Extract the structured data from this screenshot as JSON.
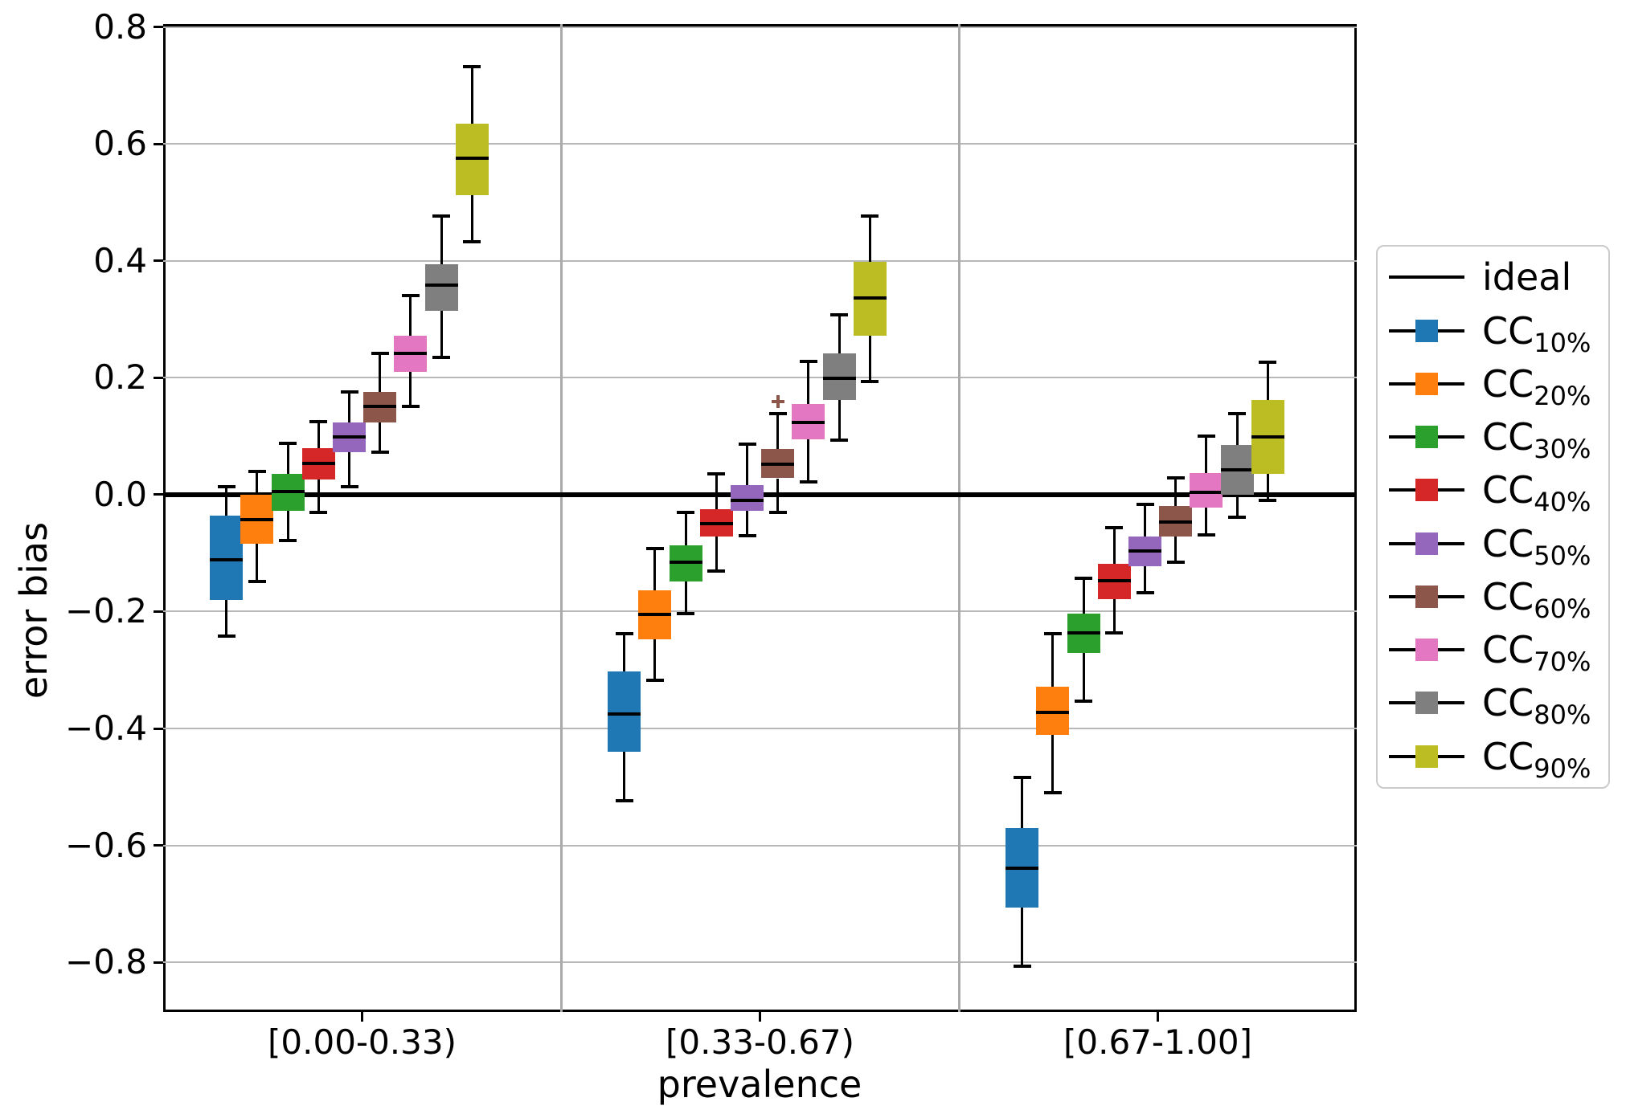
{
  "figure": {
    "background": "#ffffff",
    "spine_color": "#000000",
    "grid_color": "#b8b8b8"
  },
  "legend": {
    "position": "right-outside",
    "items": [
      {
        "id": "ideal",
        "base": "ideal",
        "subscript": "",
        "type": "line",
        "color": "#000000"
      },
      {
        "id": "cc-10",
        "base": "CC",
        "subscript": "10%",
        "type": "box",
        "color": "#1f77b4"
      },
      {
        "id": "cc-20",
        "base": "CC",
        "subscript": "20%",
        "type": "box",
        "color": "#ff7f0e"
      },
      {
        "id": "cc-30",
        "base": "CC",
        "subscript": "30%",
        "type": "box",
        "color": "#2ca02c"
      },
      {
        "id": "cc-40",
        "base": "CC",
        "subscript": "40%",
        "type": "box",
        "color": "#d62728"
      },
      {
        "id": "cc-50",
        "base": "CC",
        "subscript": "50%",
        "type": "box",
        "color": "#9467bd"
      },
      {
        "id": "cc-60",
        "base": "CC",
        "subscript": "60%",
        "type": "box",
        "color": "#8c564b"
      },
      {
        "id": "cc-70",
        "base": "CC",
        "subscript": "70%",
        "type": "box",
        "color": "#e377c2"
      },
      {
        "id": "cc-80",
        "base": "CC",
        "subscript": "80%",
        "type": "box",
        "color": "#7f7f7f"
      },
      {
        "id": "cc-90",
        "base": "CC",
        "subscript": "90%",
        "type": "box",
        "color": "#bcbd22"
      }
    ]
  },
  "chart_data": {
    "type": "boxplot",
    "title": "",
    "xlabel": "prevalence",
    "ylabel": "error bias",
    "categories": [
      "[0.00-0.33)",
      "[0.33-0.67)",
      "[0.67-1.00]"
    ],
    "ylim": [
      -0.885,
      0.805
    ],
    "yticks": {
      "values": [
        0.8,
        0.6,
        0.4,
        0.2,
        0.0,
        -0.2,
        -0.4,
        -0.6,
        -0.8
      ],
      "labels": [
        "0.8",
        "0.6",
        "0.4",
        "0.2",
        "0.0",
        "−0.2",
        "−0.4",
        "−0.6",
        "−0.8"
      ]
    },
    "grid": "horizontal",
    "group_separators": true,
    "legend_position": "right-outside",
    "ideal_line": {
      "label": "ideal",
      "y": 0.0,
      "color": "#000000"
    },
    "series": [
      {
        "name": "CC_10%",
        "legend_base": "CC",
        "legend_subscript": "10%",
        "color": "#1f77b4",
        "boxes": [
          {
            "whisker_low": -0.242,
            "q1": -0.18,
            "median": -0.111,
            "q3": -0.036,
            "whisker_high": 0.014,
            "outliers": []
          },
          {
            "whisker_low": -0.523,
            "q1": -0.44,
            "median": -0.375,
            "q3": -0.303,
            "whisker_high": -0.238,
            "outliers": []
          },
          {
            "whisker_low": -0.807,
            "q1": -0.707,
            "median": -0.639,
            "q3": -0.571,
            "whisker_high": -0.484,
            "outliers": []
          }
        ]
      },
      {
        "name": "CC_20%",
        "legend_base": "CC",
        "legend_subscript": "20%",
        "color": "#ff7f0e",
        "boxes": [
          {
            "whisker_low": -0.148,
            "q1": -0.084,
            "median": -0.043,
            "q3": 0.0,
            "whisker_high": 0.04,
            "outliers": []
          },
          {
            "whisker_low": -0.318,
            "q1": -0.247,
            "median": -0.205,
            "q3": -0.164,
            "whisker_high": -0.092,
            "outliers": []
          },
          {
            "whisker_low": -0.51,
            "q1": -0.411,
            "median": -0.373,
            "q3": -0.328,
            "whisker_high": -0.238,
            "outliers": []
          }
        ]
      },
      {
        "name": "CC_30%",
        "legend_base": "CC",
        "legend_subscript": "30%",
        "color": "#2ca02c",
        "boxes": [
          {
            "whisker_low": -0.079,
            "q1": -0.027,
            "median": 0.005,
            "q3": 0.036,
            "whisker_high": 0.088,
            "outliers": []
          },
          {
            "whisker_low": -0.204,
            "q1": -0.148,
            "median": -0.115,
            "q3": -0.087,
            "whisker_high": -0.03,
            "outliers": []
          },
          {
            "whisker_low": -0.353,
            "q1": -0.271,
            "median": -0.236,
            "q3": -0.204,
            "whisker_high": -0.143,
            "outliers": []
          }
        ]
      },
      {
        "name": "CC_40%",
        "legend_base": "CC",
        "legend_subscript": "40%",
        "color": "#d62728",
        "boxes": [
          {
            "whisker_low": -0.031,
            "q1": 0.026,
            "median": 0.054,
            "q3": 0.08,
            "whisker_high": 0.125,
            "outliers": []
          },
          {
            "whisker_low": -0.13,
            "q1": -0.072,
            "median": -0.05,
            "q3": -0.025,
            "whisker_high": 0.036,
            "outliers": []
          },
          {
            "whisker_low": -0.236,
            "q1": -0.179,
            "median": -0.147,
            "q3": -0.119,
            "whisker_high": -0.057,
            "outliers": []
          }
        ]
      },
      {
        "name": "CC_50%",
        "legend_base": "CC",
        "legend_subscript": "50%",
        "color": "#9467bd",
        "boxes": [
          {
            "whisker_low": 0.013,
            "q1": 0.073,
            "median": 0.099,
            "q3": 0.123,
            "whisker_high": 0.176,
            "outliers": []
          },
          {
            "whisker_low": -0.07,
            "q1": -0.027,
            "median": -0.01,
            "q3": 0.017,
            "whisker_high": 0.086,
            "outliers": []
          },
          {
            "whisker_low": -0.168,
            "q1": -0.122,
            "median": -0.096,
            "q3": -0.071,
            "whisker_high": -0.016,
            "outliers": []
          }
        ]
      },
      {
        "name": "CC_60%",
        "legend_base": "CC",
        "legend_subscript": "60%",
        "color": "#8c564b",
        "boxes": [
          {
            "whisker_low": 0.072,
            "q1": 0.124,
            "median": 0.151,
            "q3": 0.176,
            "whisker_high": 0.241,
            "outliers": []
          },
          {
            "whisker_low": -0.031,
            "q1": 0.028,
            "median": 0.052,
            "q3": 0.078,
            "whisker_high": 0.139,
            "outliers": [
              0.159
            ]
          },
          {
            "whisker_low": -0.116,
            "q1": -0.071,
            "median": -0.047,
            "q3": -0.019,
            "whisker_high": 0.029,
            "outliers": []
          }
        ]
      },
      {
        "name": "CC_70%",
        "legend_base": "CC",
        "legend_subscript": "70%",
        "color": "#e377c2",
        "boxes": [
          {
            "whisker_low": 0.151,
            "q1": 0.21,
            "median": 0.241,
            "q3": 0.272,
            "whisker_high": 0.34,
            "outliers": []
          },
          {
            "whisker_low": 0.022,
            "q1": 0.095,
            "median": 0.123,
            "q3": 0.155,
            "whisker_high": 0.228,
            "outliers": []
          },
          {
            "whisker_low": -0.069,
            "q1": -0.022,
            "median": 0.004,
            "q3": 0.037,
            "whisker_high": 0.1,
            "outliers": []
          }
        ]
      },
      {
        "name": "CC_80%",
        "legend_base": "CC",
        "legend_subscript": "80%",
        "color": "#7f7f7f",
        "boxes": [
          {
            "whisker_low": 0.235,
            "q1": 0.315,
            "median": 0.358,
            "q3": 0.394,
            "whisker_high": 0.476,
            "outliers": []
          },
          {
            "whisker_low": 0.093,
            "q1": 0.162,
            "median": 0.199,
            "q3": 0.242,
            "whisker_high": 0.307,
            "outliers": []
          },
          {
            "whisker_low": -0.038,
            "q1": 0.0,
            "median": 0.042,
            "q3": 0.085,
            "whisker_high": 0.139,
            "outliers": []
          }
        ]
      },
      {
        "name": "CC_90%",
        "legend_base": "CC",
        "legend_subscript": "90%",
        "color": "#bcbd22",
        "boxes": [
          {
            "whisker_low": 0.432,
            "q1": 0.513,
            "median": 0.576,
            "q3": 0.634,
            "whisker_high": 0.732,
            "outliers": []
          },
          {
            "whisker_low": 0.193,
            "q1": 0.272,
            "median": 0.337,
            "q3": 0.398,
            "whisker_high": 0.477,
            "outliers": []
          },
          {
            "whisker_low": -0.01,
            "q1": 0.035,
            "median": 0.099,
            "q3": 0.162,
            "whisker_high": 0.227,
            "outliers": []
          }
        ]
      }
    ]
  }
}
